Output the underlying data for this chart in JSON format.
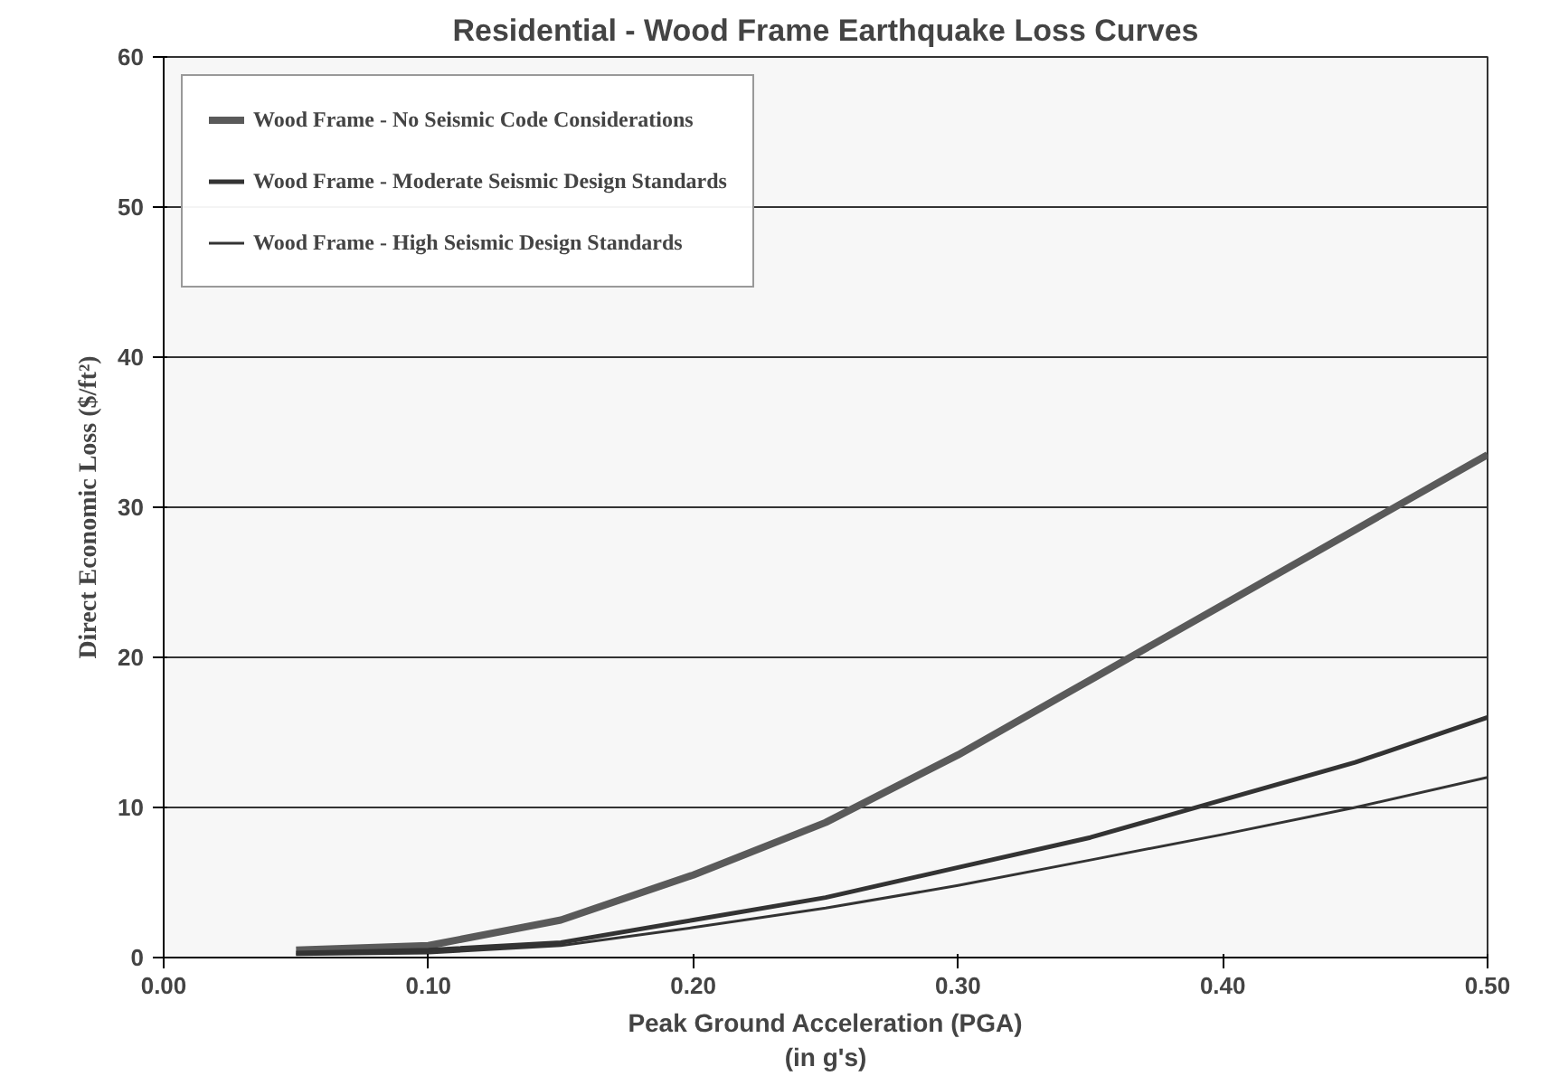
{
  "chart_data": {
    "type": "line",
    "title": "Residential - Wood Frame Earthquake Loss Curves",
    "xlabel": "Peak Ground Acceleration (PGA)\n(in g's)",
    "ylabel": "Direct Economic Loss ($/ft²)",
    "x": [
      0.05,
      0.1,
      0.15,
      0.2,
      0.25,
      0.3,
      0.35,
      0.4,
      0.45,
      0.5
    ],
    "series": [
      {
        "name": "Wood Frame - No Seismic Code Considerations",
        "color": "#5a5a5a",
        "values": [
          0.5,
          0.8,
          2.5,
          5.5,
          9,
          13.5,
          18.5,
          23.5,
          28.5,
          33.5
        ]
      },
      {
        "name": "Wood Frame - Moderate Seismic Design Standards",
        "color": "#333333",
        "values": [
          0.3,
          0.5,
          1.0,
          2.5,
          4,
          6,
          8,
          10.5,
          13,
          16
        ]
      },
      {
        "name": "Wood Frame - High Seismic Design Standards",
        "color": "#333333",
        "values": [
          0.2,
          0.3,
          0.8,
          2,
          3.3,
          4.8,
          6.5,
          8.2,
          10,
          12
        ]
      }
    ],
    "xlim": [
      0,
      0.5
    ],
    "ylim": [
      0,
      60
    ],
    "xticks": [
      {
        "value": 0,
        "label": "0.00"
      },
      {
        "value": 0.1,
        "label": "0.10"
      },
      {
        "value": 0.2,
        "label": "0.20"
      },
      {
        "value": 0.3,
        "label": "0.30"
      },
      {
        "value": 0.4,
        "label": "0.40"
      },
      {
        "value": 0.5,
        "label": "0.50"
      }
    ],
    "yticks": [
      0,
      10,
      20,
      30,
      40,
      50,
      60
    ],
    "grid": "y",
    "legend": "top left",
    "marker": "none",
    "line_style": "solid"
  }
}
